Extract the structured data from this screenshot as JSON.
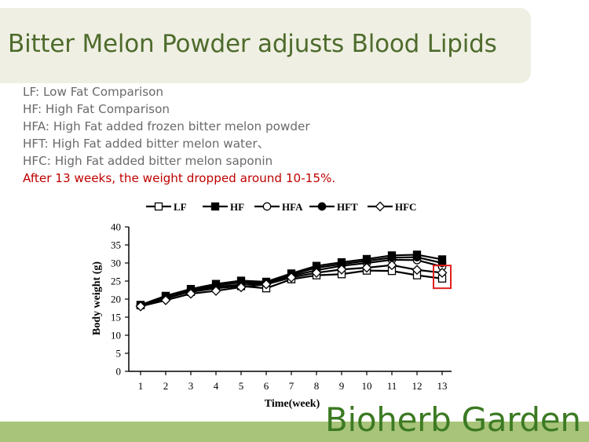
{
  "slide": {
    "title": "Bitter Melon Powder adjusts Blood Lipids",
    "legend_notes": [
      "LF: Low Fat Comparison",
      "HF: High Fat Comparison",
      "HFA: High Fat added frozen bitter melon powder",
      "HFT: High Fat added bitter melon water、",
      "HFC: High Fat added bitter melon saponin"
    ],
    "highlight": "After 13 weeks, the weight dropped around 10-15%.",
    "brand": "Bioherb Garden",
    "colors": {
      "title": "#4e6b2c",
      "highlight": "#c00000",
      "brand": "#3c7a22",
      "bar": "#a7c47a",
      "marker_box": "#e02020"
    }
  },
  "chart_data": {
    "type": "line",
    "xlabel": "Time(week)",
    "ylabel": "Body weight (g)",
    "x": [
      1,
      2,
      3,
      4,
      5,
      6,
      7,
      8,
      9,
      10,
      11,
      12,
      13
    ],
    "xlim": [
      1,
      13
    ],
    "ylim": [
      0,
      40
    ],
    "yticks": [
      0,
      5,
      10,
      15,
      20,
      25,
      30,
      35,
      40
    ],
    "legend_position": "top",
    "highlighted_point": 13,
    "series": [
      {
        "name": "LF",
        "marker": "square-open",
        "values": [
          18.3,
          20.6,
          22.0,
          23.0,
          23.6,
          23.0,
          25.5,
          26.6,
          26.9,
          27.9,
          27.8,
          26.6,
          25.7
        ]
      },
      {
        "name": "HF",
        "marker": "square-filled",
        "values": [
          18.4,
          20.9,
          22.8,
          24.2,
          25.1,
          24.8,
          27.1,
          29.2,
          30.2,
          31.1,
          32.1,
          32.3,
          31.0
        ]
      },
      {
        "name": "HFA",
        "marker": "circle-open",
        "values": [
          18.2,
          20.2,
          22.1,
          23.4,
          24.0,
          24.3,
          26.4,
          28.0,
          29.2,
          30.0,
          30.9,
          30.8,
          29.0
        ]
      },
      {
        "name": "HFT",
        "marker": "circle-filled",
        "values": [
          18.3,
          20.5,
          22.5,
          23.8,
          24.6,
          24.5,
          26.8,
          28.7,
          29.7,
          30.6,
          31.5,
          31.6,
          30.0
        ]
      },
      {
        "name": "HFC",
        "marker": "diamond-open",
        "values": [
          18.0,
          19.7,
          21.5,
          22.3,
          23.3,
          24.1,
          26.0,
          27.3,
          28.2,
          28.7,
          29.4,
          28.1,
          27.3
        ]
      }
    ]
  }
}
